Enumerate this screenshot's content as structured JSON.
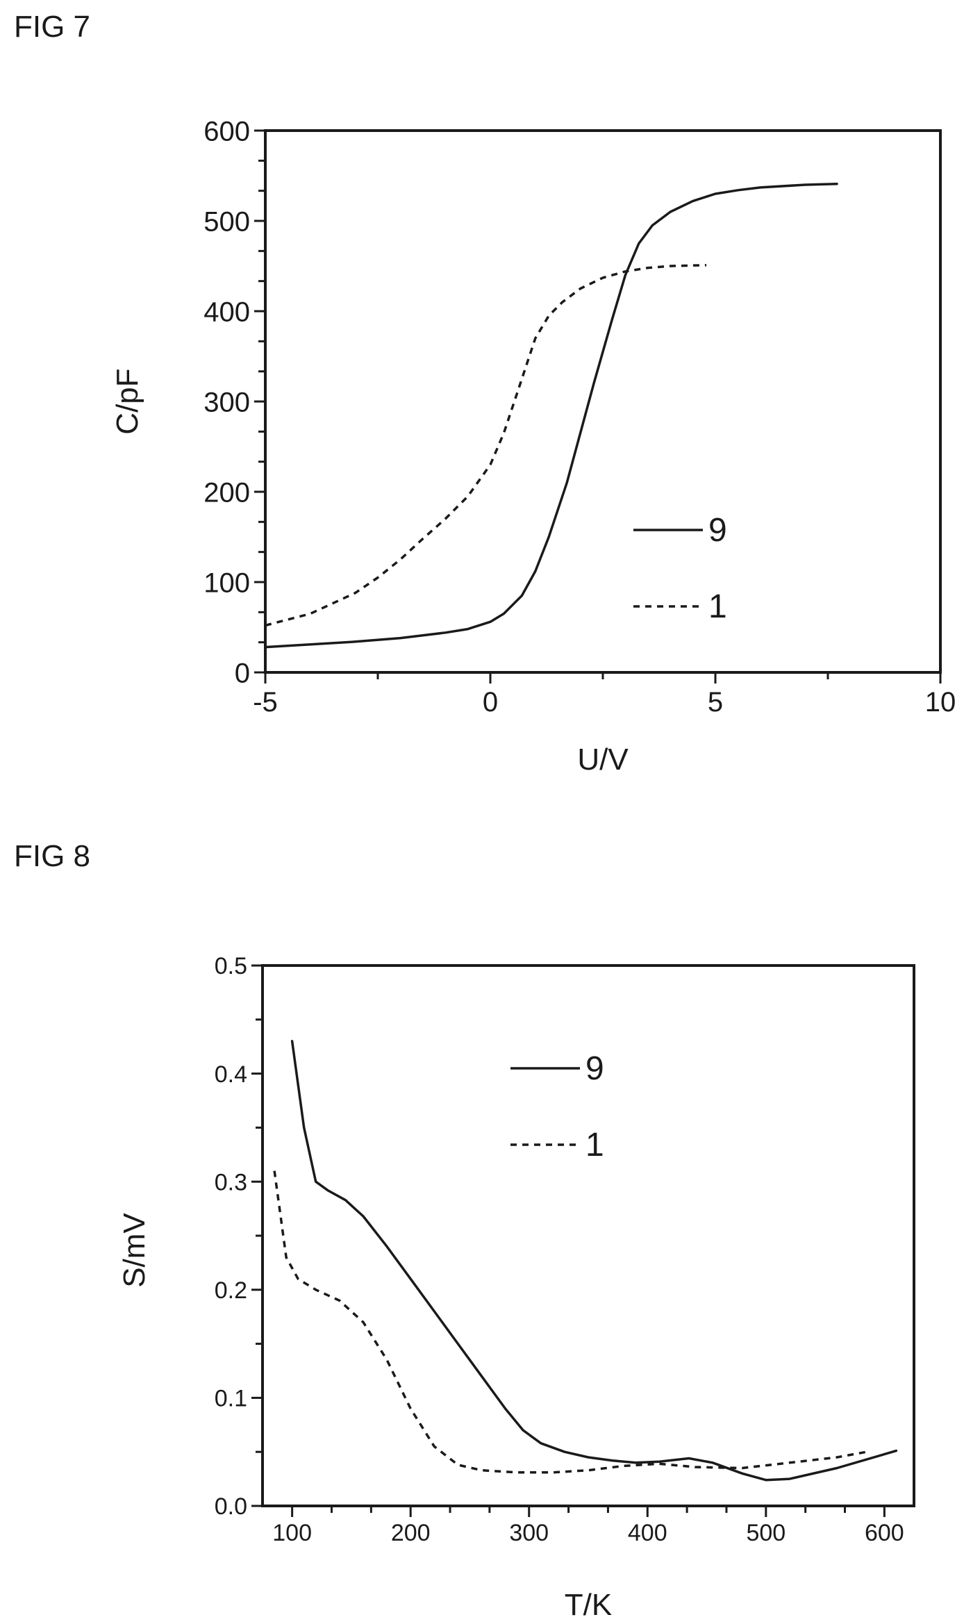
{
  "figures": [
    {
      "label": "FIG 7"
    },
    {
      "label": "FIG 8"
    }
  ],
  "chart_data": [
    {
      "type": "line",
      "xlabel": "U/V",
      "ylabel": "C/pF",
      "xlim": [
        -5,
        10
      ],
      "ylim": [
        0,
        600
      ],
      "xticks": [
        -5,
        0,
        5,
        10
      ],
      "yticks": [
        0,
        100,
        200,
        300,
        400,
        500,
        600
      ],
      "grid": false,
      "legend_placement": "lower-right",
      "series": [
        {
          "name": "9",
          "style": "solid",
          "x": [
            -5,
            -4,
            -3,
            -2,
            -1,
            -0.5,
            0,
            0.3,
            0.7,
            1,
            1.3,
            1.7,
            2,
            2.3,
            2.7,
            3,
            3.3,
            3.6,
            4,
            4.5,
            5,
            5.5,
            6,
            7,
            7.7
          ],
          "y": [
            28,
            31,
            34,
            38,
            44,
            48,
            56,
            65,
            85,
            112,
            150,
            210,
            265,
            320,
            390,
            440,
            475,
            495,
            510,
            522,
            530,
            534,
            537,
            540,
            541
          ]
        },
        {
          "name": "1",
          "style": "dashed",
          "x": [
            -5,
            -4,
            -3,
            -2.5,
            -2,
            -1.5,
            -1,
            -0.5,
            0,
            0.3,
            0.6,
            1,
            1.3,
            1.6,
            2,
            2.5,
            3,
            3.5,
            4,
            4.8
          ],
          "y": [
            52,
            65,
            88,
            105,
            125,
            148,
            170,
            195,
            230,
            265,
            310,
            370,
            395,
            410,
            425,
            437,
            444,
            448,
            450,
            451
          ]
        }
      ]
    },
    {
      "type": "line",
      "xlabel": "T/K",
      "ylabel": "S/mV",
      "xlim": [
        75,
        625
      ],
      "ylim": [
        0,
        0.5
      ],
      "xticks": [
        100,
        200,
        300,
        400,
        500,
        600
      ],
      "yticks": [
        "0.0",
        "0.1",
        "0.2",
        "0.3",
        "0.4",
        "0.5"
      ],
      "grid": false,
      "legend_placement": "top-center",
      "series": [
        {
          "name": "9",
          "style": "solid",
          "x": [
            100,
            110,
            120,
            130,
            145,
            160,
            180,
            200,
            220,
            240,
            260,
            280,
            295,
            310,
            330,
            350,
            370,
            390,
            410,
            435,
            455,
            480,
            500,
            520,
            560,
            610
          ],
          "y": [
            0.43,
            0.35,
            0.3,
            0.292,
            0.283,
            0.268,
            0.24,
            0.21,
            0.18,
            0.15,
            0.12,
            0.09,
            0.07,
            0.058,
            0.05,
            0.045,
            0.042,
            0.04,
            0.041,
            0.044,
            0.04,
            0.03,
            0.024,
            0.025,
            0.035,
            0.051
          ]
        },
        {
          "name": "1",
          "style": "dashed",
          "x": [
            85,
            95,
            105,
            120,
            140,
            160,
            180,
            200,
            220,
            240,
            260,
            290,
            320,
            350,
            380,
            410,
            440,
            480,
            520,
            560,
            585
          ],
          "y": [
            0.31,
            0.23,
            0.21,
            0.2,
            0.19,
            0.17,
            0.135,
            0.09,
            0.055,
            0.038,
            0.033,
            0.031,
            0.031,
            0.033,
            0.037,
            0.039,
            0.036,
            0.035,
            0.04,
            0.045,
            0.05
          ]
        }
      ]
    }
  ]
}
